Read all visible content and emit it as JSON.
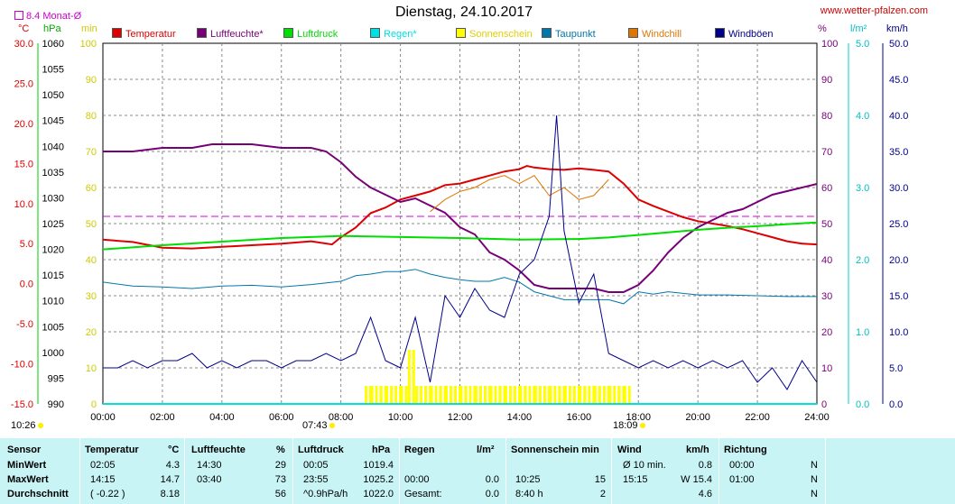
{
  "header": {
    "title": "Dienstag, 24.10.2017",
    "website": "www.wetter-pfalzen.com",
    "monthly_avg_label": "8.4 Monat-Ø"
  },
  "colors": {
    "temperatur": "#dd0000",
    "luftfeuchte": "#770077",
    "luftdruck": "#00dd00",
    "regen": "#00e0e0",
    "sonnenschein": "#ffff00",
    "taupunkt": "#0077aa",
    "windchill": "#dd7700",
    "windboeen": "#000088",
    "monthly_avg": "#dd00dd"
  },
  "chart_data": {
    "type": "line",
    "title": "Dienstag, 24.10.2017",
    "xlim": [
      0,
      24
    ],
    "x_tick_labels": [
      "00:00",
      "02:00",
      "04:00",
      "06:00",
      "08:00",
      "10:00",
      "12:00",
      "14:00",
      "16:00",
      "18:00",
      "20:00",
      "22:00",
      "24:00"
    ],
    "grid": true,
    "legend_position": "top",
    "axes": {
      "temp_c": {
        "unit": "°C",
        "range": [
          -15,
          30
        ],
        "ticks": [
          "30.0",
          "25.0",
          "20.0",
          "15.0",
          "10.0",
          "5.0",
          "0.0",
          "-5.0",
          "-10.0",
          "-15.0"
        ]
      },
      "pressure_hpa": {
        "unit": "hPa",
        "range": [
          990,
          1060
        ],
        "ticks": [
          "1060",
          "1055",
          "1050",
          "1045",
          "1040",
          "1035",
          "1030",
          "1025",
          "1020",
          "1015",
          "1010",
          "1005",
          "1000",
          "995",
          "990"
        ]
      },
      "sunshine_min": {
        "unit": "min",
        "range": [
          0,
          100
        ],
        "ticks": [
          "100",
          "90",
          "80",
          "70",
          "60",
          "50",
          "40",
          "30",
          "20",
          "10",
          "0"
        ]
      },
      "humidity_pct": {
        "unit": "%",
        "range": [
          0,
          100
        ],
        "ticks": [
          "100",
          "90",
          "80",
          "70",
          "60",
          "50",
          "40",
          "30",
          "20",
          "10",
          "0"
        ]
      },
      "rain_lm2": {
        "unit": "l/m²",
        "range": [
          0,
          5
        ],
        "ticks": [
          "5.0",
          "4.0",
          "3.0",
          "2.0",
          "1.0",
          "0.0"
        ]
      },
      "wind_kmh": {
        "unit": "km/h",
        "range": [
          0,
          50
        ],
        "ticks": [
          "50.0",
          "45.0",
          "40.0",
          "35.0",
          "30.0",
          "25.0",
          "20.0",
          "15.0",
          "10.0",
          "5.0",
          "0.0"
        ]
      }
    },
    "monthly_avg_temp": 8.4,
    "series": [
      {
        "name": "Temperatur",
        "key": "temperatur",
        "axis": "temp_c",
        "x": [
          0,
          1,
          2,
          3,
          4,
          5,
          6,
          7,
          7.7,
          8,
          8.5,
          9,
          9.5,
          10,
          10.5,
          11,
          11.5,
          12,
          12.5,
          13,
          13.5,
          14,
          14.25,
          14.5,
          15,
          15.5,
          16,
          16.5,
          17,
          17.5,
          18,
          18.5,
          19,
          19.5,
          20,
          20.5,
          21,
          21.5,
          22,
          22.5,
          23,
          23.5,
          24
        ],
        "y": [
          5.5,
          5.2,
          4.5,
          4.4,
          4.6,
          4.8,
          5.0,
          5.3,
          4.9,
          5.8,
          7.0,
          8.8,
          9.5,
          10.5,
          11.0,
          11.5,
          12.3,
          12.5,
          13.0,
          13.5,
          14.0,
          14.3,
          14.7,
          14.5,
          14.3,
          14.2,
          14.4,
          14.2,
          14.0,
          12.5,
          10.5,
          9.7,
          9.0,
          8.3,
          7.8,
          7.5,
          7.2,
          6.8,
          6.3,
          5.8,
          5.3,
          5.0,
          4.9
        ]
      },
      {
        "name": "Luftfeuchte*",
        "key": "luftfeuchte",
        "axis": "humidity_pct",
        "x": [
          0,
          1,
          2,
          3,
          3.67,
          4,
          5,
          6,
          7,
          7.5,
          8,
          8.5,
          9,
          9.5,
          10,
          10.5,
          11,
          11.5,
          12,
          12.5,
          13,
          13.5,
          14,
          14.5,
          15,
          15.5,
          16,
          16.5,
          17,
          17.5,
          18,
          18.5,
          19,
          19.5,
          20,
          20.5,
          21,
          21.5,
          22,
          22.5,
          23,
          23.5,
          24
        ],
        "y": [
          70,
          70,
          71,
          71,
          72,
          72,
          72,
          71,
          71,
          70,
          67,
          63,
          60,
          58,
          56,
          57,
          55,
          53,
          49,
          47,
          42,
          40,
          37,
          33,
          32,
          32,
          32,
          32,
          31,
          31,
          33,
          37,
          42,
          46,
          49,
          51,
          53,
          54,
          56,
          58,
          59,
          60,
          61
        ]
      },
      {
        "name": "Luftdruck",
        "key": "luftdruck",
        "axis": "pressure_hpa",
        "x": [
          0,
          2,
          4,
          6,
          8,
          10,
          12,
          14,
          16,
          17,
          18,
          19,
          20,
          21,
          22,
          23,
          23.92,
          24
        ],
        "y": [
          1020.0,
          1020.8,
          1021.5,
          1022.2,
          1022.6,
          1022.4,
          1022.2,
          1021.9,
          1022.0,
          1022.3,
          1022.8,
          1023.3,
          1023.8,
          1024.2,
          1024.5,
          1024.9,
          1025.2,
          1025.1
        ]
      },
      {
        "name": "Regen*",
        "key": "regen",
        "axis": "rain_lm2",
        "x": [
          0,
          24
        ],
        "y": [
          0,
          0
        ]
      },
      {
        "name": "Sonnenschein",
        "key": "sonnenschein",
        "axis": "sunshine_min",
        "x": [
          8.8,
          9.0,
          9.5,
          10.0,
          10.25,
          10.5,
          11,
          11.5,
          12,
          12.5,
          13,
          13.5,
          14,
          14.5,
          15,
          15.5,
          16,
          16.5,
          17,
          17.5
        ],
        "y": [
          5,
          5,
          5,
          5,
          15,
          5,
          5,
          5,
          5,
          5,
          5,
          5,
          5,
          5,
          5,
          5,
          5,
          5,
          5,
          5
        ]
      },
      {
        "name": "Taupunkt",
        "key": "taupunkt",
        "axis": "temp_c",
        "x": [
          0,
          1,
          2,
          3,
          4,
          5,
          6,
          7,
          8,
          8.5,
          9,
          9.5,
          10,
          10.5,
          11,
          11.5,
          12,
          12.5,
          13,
          13.5,
          14,
          14.5,
          15,
          15.5,
          16,
          16.5,
          17,
          17.5,
          18,
          18.5,
          19,
          20,
          21,
          22,
          23,
          24
        ],
        "y": [
          0.2,
          -0.3,
          -0.4,
          -0.6,
          -0.3,
          -0.2,
          -0.4,
          -0.1,
          0.3,
          1.0,
          1.2,
          1.5,
          1.5,
          1.8,
          1.2,
          0.8,
          0.5,
          0.3,
          0.3,
          0.8,
          0.2,
          -1.0,
          -1.5,
          -2.0,
          -2.0,
          -2.0,
          -2.0,
          -2.5,
          -1.0,
          -1.3,
          -1.0,
          -1.4,
          -1.4,
          -1.5,
          -1.6,
          -1.6
        ]
      },
      {
        "name": "Windchill",
        "key": "windchill",
        "axis": "temp_c",
        "x": [
          11,
          11.5,
          12,
          12.5,
          13,
          13.5,
          14,
          14.5,
          15,
          15.5,
          16,
          16.5,
          17
        ],
        "y": [
          9.0,
          10.5,
          11.5,
          12.0,
          13.0,
          13.5,
          12.5,
          13.5,
          11.0,
          12.0,
          10.5,
          11.0,
          13.0
        ]
      },
      {
        "name": "Windböen",
        "key": "windboeen",
        "axis": "wind_kmh",
        "x": [
          0,
          0.5,
          1,
          1.5,
          2,
          2.5,
          3,
          3.5,
          4,
          4.5,
          5,
          5.5,
          6,
          6.5,
          7,
          7.5,
          8,
          8.5,
          9,
          9.5,
          10,
          10.5,
          11,
          11.5,
          12,
          12.5,
          13,
          13.5,
          14,
          14.5,
          15,
          15.25,
          15.5,
          16,
          16.5,
          17,
          17.5,
          18,
          18.5,
          19,
          19.5,
          20,
          20.5,
          21,
          21.5,
          22,
          22.5,
          23,
          23.5,
          24
        ],
        "y": [
          5,
          5,
          6,
          5,
          6,
          6,
          7,
          5,
          6,
          5,
          6,
          6,
          5,
          6,
          6,
          7,
          6,
          7,
          12,
          6,
          5,
          12,
          3,
          15,
          12,
          16,
          13,
          12,
          18,
          20,
          26,
          40,
          24,
          14,
          18,
          7,
          6,
          5,
          6,
          5,
          6,
          5,
          6,
          5,
          6,
          3,
          5,
          2,
          6,
          3
        ]
      }
    ]
  },
  "markers": {
    "left_time": "10:26",
    "sunrise": "07:43",
    "sunset": "18:09"
  },
  "table": {
    "headers": {
      "sensor": "Sensor",
      "temperatur": "Temperatur",
      "temp_unit": "°C",
      "luftfeuchte": "Luftfeuchte",
      "hum_unit": "%",
      "luftdruck": "Luftdruck",
      "press_unit": "hPa",
      "regen": "Regen",
      "rain_unit": "l/m²",
      "sonnenschein": "Sonnenschein min",
      "wind": "Wind",
      "wind_unit": "km/h",
      "richtung": "Richtung"
    },
    "rows": [
      {
        "label": "MinWert",
        "temp_time": "02:05",
        "temp_val": "4.3",
        "hum_time": "14:30",
        "hum_val": "29",
        "press_time": "00:05",
        "press_val": "1019.4",
        "rain_time": "",
        "rain_val": "",
        "sun_time": "",
        "sun_val": "",
        "wind_time": "Ø 10 min.",
        "wind_val": "0.8",
        "dir_time": "00:00",
        "dir_val": "N"
      },
      {
        "label": "MaxWert",
        "temp_time": "14:15",
        "temp_val": "14.7",
        "hum_time": "03:40",
        "hum_val": "73",
        "press_time": "23:55",
        "press_val": "1025.2",
        "rain_time": "00:00",
        "rain_val": "0.0",
        "sun_time": "10:25",
        "sun_val": "15",
        "wind_time": "15:15",
        "wind_val": "W 15.4",
        "dir_time": "01:00",
        "dir_val": "N"
      },
      {
        "label": "Durchschnitt",
        "temp_time": "( -0.22 )",
        "temp_val": "8.18",
        "hum_time": "",
        "hum_val": "56",
        "press_time": "^0.9hPa/h",
        "press_val": "1022.0",
        "rain_time": "Gesamt:",
        "rain_val": "0.0",
        "sun_time": "8:40 h",
        "sun_val": "2",
        "wind_time": "",
        "wind_val": "4.6",
        "dir_time": "",
        "dir_val": "N"
      }
    ]
  }
}
